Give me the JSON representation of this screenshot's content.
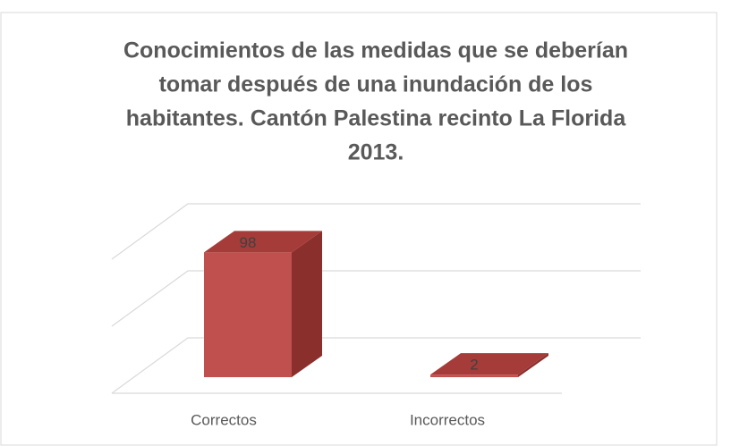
{
  "chart_data": {
    "type": "bar3d",
    "title": [
      "Conocimientos de las medidas que se deberían",
      "tomar después de una inundación de los",
      "habitantes. Cantón Palestina recinto La Florida",
      "2013."
    ],
    "categories": [
      "Correctos",
      "Incorrectos"
    ],
    "values": [
      98,
      2
    ],
    "color": "#c0504d",
    "ylim": [
      0,
      120
    ],
    "yticks": [
      0,
      60,
      120
    ],
    "grid": true
  }
}
